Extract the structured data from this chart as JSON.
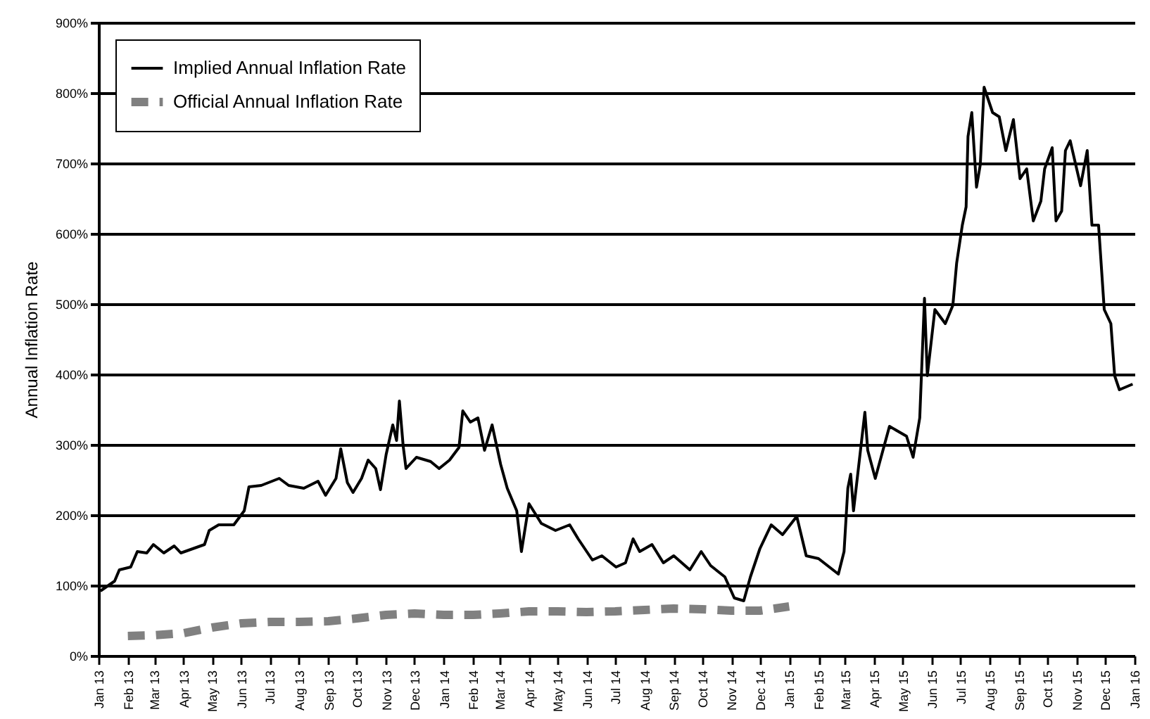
{
  "chart_data": {
    "type": "line",
    "ylabel": "Annual Inflation Rate",
    "xlim": [
      "2013-01-01",
      "2016-01-01"
    ],
    "xticks": [
      {
        "value": "2013-01-01",
        "label": "Jan 13"
      },
      {
        "value": "2013-02-01",
        "label": "Feb 13"
      },
      {
        "value": "2013-03-01",
        "label": "Mar 13"
      },
      {
        "value": "2013-04-01",
        "label": "Apr 13"
      },
      {
        "value": "2013-05-01",
        "label": "May 13"
      },
      {
        "value": "2013-06-01",
        "label": "Jun 13"
      },
      {
        "value": "2013-07-01",
        "label": "Jul 13"
      },
      {
        "value": "2013-08-01",
        "label": "Aug 13"
      },
      {
        "value": "2013-09-01",
        "label": "Sep 13"
      },
      {
        "value": "2013-10-01",
        "label": "Oct 13"
      },
      {
        "value": "2013-11-01",
        "label": "Nov 13"
      },
      {
        "value": "2013-12-01",
        "label": "Dec 13"
      },
      {
        "value": "2014-01-01",
        "label": "Jan 14"
      },
      {
        "value": "2014-02-01",
        "label": "Feb 14"
      },
      {
        "value": "2014-03-01",
        "label": "Mar 14"
      },
      {
        "value": "2014-04-01",
        "label": "Apr 14"
      },
      {
        "value": "2014-05-01",
        "label": "May 14"
      },
      {
        "value": "2014-06-01",
        "label": "Jun 14"
      },
      {
        "value": "2014-07-01",
        "label": "Jul 14"
      },
      {
        "value": "2014-08-01",
        "label": "Aug 14"
      },
      {
        "value": "2014-09-01",
        "label": "Sep 14"
      },
      {
        "value": "2014-10-01",
        "label": "Oct 14"
      },
      {
        "value": "2014-11-01",
        "label": "Nov 14"
      },
      {
        "value": "2014-12-01",
        "label": "Dec 14"
      },
      {
        "value": "2015-01-01",
        "label": "Jan 15"
      },
      {
        "value": "2015-02-01",
        "label": "Feb 15"
      },
      {
        "value": "2015-03-01",
        "label": "Mar 15"
      },
      {
        "value": "2015-04-01",
        "label": "Apr 15"
      },
      {
        "value": "2015-05-01",
        "label": "May 15"
      },
      {
        "value": "2015-06-01",
        "label": "Jun 15"
      },
      {
        "value": "2015-07-01",
        "label": "Jul 15"
      },
      {
        "value": "2015-08-01",
        "label": "Aug 15"
      },
      {
        "value": "2015-09-01",
        "label": "Sep 15"
      },
      {
        "value": "2015-10-01",
        "label": "Oct 15"
      },
      {
        "value": "2015-11-01",
        "label": "Nov 15"
      },
      {
        "value": "2015-12-01",
        "label": "Dec 15"
      },
      {
        "value": "2016-01-01",
        "label": "Jan 16"
      }
    ],
    "ylim": [
      0,
      900
    ],
    "yticks": [
      {
        "value": 0,
        "label": "0%"
      },
      {
        "value": 100,
        "label": "100%"
      },
      {
        "value": 200,
        "label": "200%"
      },
      {
        "value": 300,
        "label": "300%"
      },
      {
        "value": 400,
        "label": "400%"
      },
      {
        "value": 500,
        "label": "500%"
      },
      {
        "value": 600,
        "label": "600%"
      },
      {
        "value": 700,
        "label": "700%"
      },
      {
        "value": 800,
        "label": "800%"
      },
      {
        "value": 900,
        "label": "900%"
      }
    ],
    "grid": "y",
    "legend": "top left",
    "series": [
      {
        "name": "Implied Annual Inflation Rate",
        "color": "#000000",
        "line_style": "solid",
        "x": [
          "2013-01-03",
          "2013-01-18",
          "2013-01-23",
          "2013-02-04",
          "2013-02-11",
          "2013-02-21",
          "2013-02-28",
          "2013-03-11",
          "2013-03-22",
          "2013-03-29",
          "2013-04-23",
          "2013-04-28",
          "2013-05-08",
          "2013-05-24",
          "2013-06-04",
          "2013-06-09",
          "2013-06-22",
          "2013-07-11",
          "2013-07-21",
          "2013-08-06",
          "2013-08-21",
          "2013-08-29",
          "2013-09-09",
          "2013-09-14",
          "2013-09-21",
          "2013-09-27",
          "2013-10-06",
          "2013-10-13",
          "2013-10-21",
          "2013-10-26",
          "2013-11-01",
          "2013-11-08",
          "2013-11-12",
          "2013-11-15",
          "2013-11-19",
          "2013-11-22",
          "2013-12-03",
          "2013-12-18",
          "2013-12-27",
          "2014-01-07",
          "2014-01-17",
          "2014-01-21",
          "2014-01-29",
          "2014-02-06",
          "2014-02-13",
          "2014-02-21",
          "2014-03-02",
          "2014-03-09",
          "2014-03-19",
          "2014-03-24",
          "2014-04-01",
          "2014-04-14",
          "2014-04-29",
          "2014-05-14",
          "2014-05-23",
          "2014-06-07",
          "2014-06-17",
          "2014-07-02",
          "2014-07-12",
          "2014-07-20",
          "2014-07-27",
          "2014-08-09",
          "2014-08-21",
          "2014-09-01",
          "2014-09-18",
          "2014-09-30",
          "2014-10-10",
          "2014-10-25",
          "2014-11-04",
          "2014-11-14",
          "2014-11-21",
          "2014-12-01",
          "2014-12-13",
          "2014-12-25",
          "2015-01-09",
          "2015-01-19",
          "2015-02-01",
          "2015-02-22",
          "2015-02-28",
          "2015-03-04",
          "2015-03-07",
          "2015-03-10",
          "2015-03-22",
          "2015-03-25",
          "2015-04-02",
          "2015-04-17",
          "2015-05-05",
          "2015-05-12",
          "2015-05-19",
          "2015-05-24",
          "2015-05-27",
          "2015-06-04",
          "2015-06-15",
          "2015-06-23",
          "2015-06-27",
          "2015-07-03",
          "2015-07-07",
          "2015-07-09",
          "2015-07-13",
          "2015-07-18",
          "2015-07-22",
          "2015-07-26",
          "2015-08-04",
          "2015-08-11",
          "2015-08-18",
          "2015-08-26",
          "2015-09-02",
          "2015-09-09",
          "2015-09-16",
          "2015-09-24",
          "2015-09-28",
          "2015-10-06",
          "2015-10-10",
          "2015-10-16",
          "2015-10-20",
          "2015-10-25",
          "2015-11-05",
          "2015-11-12",
          "2015-11-17",
          "2015-11-24",
          "2015-11-30",
          "2015-12-07",
          "2015-12-11",
          "2015-12-16",
          "2015-12-30"
        ],
        "values": [
          92,
          106,
          122,
          126,
          148,
          146,
          158,
          146,
          156,
          146,
          158,
          178,
          186,
          186,
          206,
          240,
          242,
          252,
          242,
          238,
          248,
          228,
          252,
          294,
          246,
          232,
          252,
          278,
          266,
          236,
          286,
          328,
          306,
          362,
          298,
          266,
          282,
          276,
          266,
          278,
          296,
          348,
          332,
          338,
          292,
          328,
          272,
          238,
          206,
          148,
          216,
          188,
          178,
          186,
          166,
          136,
          142,
          126,
          132,
          166,
          148,
          158,
          132,
          142,
          122,
          148,
          128,
          112,
          82,
          78,
          112,
          152,
          186,
          172,
          198,
          142,
          138,
          116,
          148,
          238,
          258,
          206,
          346,
          292,
          252,
          326,
          312,
          282,
          338,
          508,
          398,
          492,
          472,
          498,
          558,
          612,
          638,
          738,
          772,
          666,
          698,
          808,
          772,
          766,
          718,
          762,
          678,
          692,
          618,
          646,
          692,
          722,
          618,
          632,
          718,
          732,
          668,
          718,
          612,
          612,
          492,
          472,
          398,
          378,
          386
        ]
      },
      {
        "name": "Official Annual Inflation Rate",
        "color": "#808080",
        "line_style": "dashed",
        "x": [
          "2013-02-01",
          "2013-03-01",
          "2013-04-01",
          "2013-05-01",
          "2013-06-01",
          "2013-07-01",
          "2013-08-01",
          "2013-09-01",
          "2013-10-01",
          "2013-11-01",
          "2013-12-01",
          "2014-01-01",
          "2014-02-01",
          "2014-03-01",
          "2014-04-01",
          "2014-05-01",
          "2014-06-01",
          "2014-07-01",
          "2014-08-01",
          "2014-09-01",
          "2014-10-01",
          "2014-11-01",
          "2014-12-01",
          "2015-01-01"
        ],
        "values": [
          28,
          29,
          32,
          40,
          46,
          48,
          48,
          49,
          53,
          58,
          60,
          58,
          58,
          60,
          63,
          63,
          62,
          63,
          65,
          67,
          66,
          64,
          64,
          70
        ]
      }
    ]
  }
}
